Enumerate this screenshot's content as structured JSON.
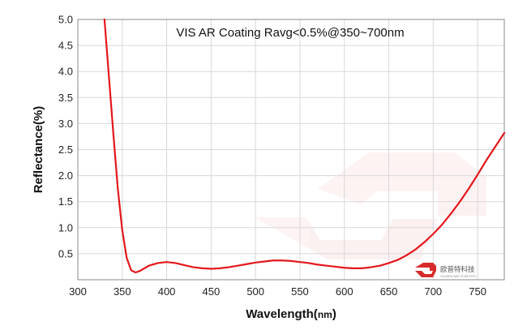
{
  "chart_data": {
    "type": "line",
    "title": "VIS AR Coating Ravg<0.5%@350~700nm",
    "xlabel": "Wavelength(nm)",
    "ylabel": "Reflectance(%)",
    "xlim": [
      300,
      780
    ],
    "ylim": [
      0,
      5.0
    ],
    "x_ticks": [
      "300",
      "350",
      "400",
      "450",
      "500",
      "550",
      "600",
      "650",
      "700",
      "750"
    ],
    "y_ticks": [
      "0.5",
      "1.0",
      "1.5",
      "2.0",
      "2.5",
      "3.0",
      "3.5",
      "4.0",
      "4.5",
      "5.0"
    ],
    "grid": true,
    "legend": "none",
    "series": [
      {
        "color": "#e3171c",
        "x": [
          330,
          335,
          340,
          345,
          350,
          355,
          360,
          365,
          370,
          375,
          380,
          390,
          400,
          410,
          420,
          430,
          440,
          450,
          460,
          470,
          480,
          490,
          500,
          510,
          520,
          530,
          540,
          550,
          560,
          570,
          580,
          590,
          600,
          610,
          620,
          630,
          640,
          650,
          660,
          670,
          680,
          690,
          700,
          710,
          720,
          730,
          740,
          750,
          760,
          770,
          780
        ],
        "y": [
          5.0,
          3.9,
          2.8,
          1.75,
          0.95,
          0.42,
          0.18,
          0.14,
          0.17,
          0.22,
          0.27,
          0.32,
          0.34,
          0.32,
          0.28,
          0.24,
          0.22,
          0.21,
          0.22,
          0.24,
          0.27,
          0.3,
          0.33,
          0.35,
          0.37,
          0.37,
          0.36,
          0.34,
          0.32,
          0.29,
          0.27,
          0.25,
          0.23,
          0.22,
          0.22,
          0.24,
          0.27,
          0.32,
          0.38,
          0.47,
          0.58,
          0.72,
          0.88,
          1.06,
          1.27,
          1.5,
          1.75,
          2.02,
          2.3,
          2.56,
          2.82
        ]
      }
    ]
  },
  "logo": {
    "name": "欧普特科技",
    "sub": "GOLDEN WAY SCIENTIFIC",
    "color": "#d62b2b"
  }
}
